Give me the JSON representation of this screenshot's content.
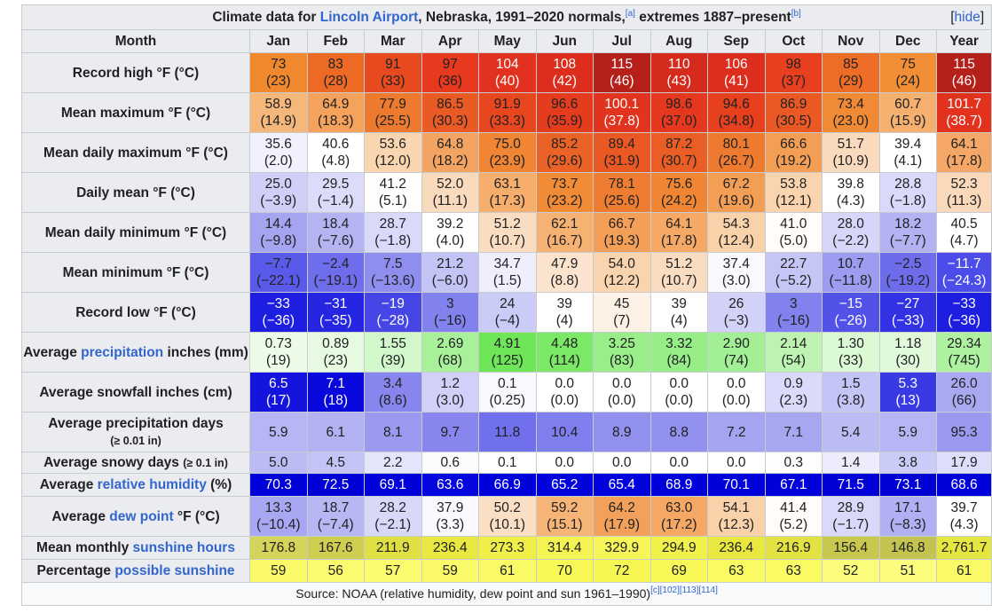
{
  "caption": {
    "prefix": "Climate data for ",
    "link": "Lincoln Airport",
    "middle": ", Nebraska, 1991–2020 normals,",
    "ref_a": "[a]",
    "suffix": " extremes 1887–present",
    "ref_b": "[b]",
    "hide_open": "[",
    "hide_label": "hide",
    "hide_close": "]"
  },
  "header": {
    "month_label": "Month",
    "months": [
      "Jan",
      "Feb",
      "Mar",
      "Apr",
      "May",
      "Jun",
      "Jul",
      "Aug",
      "Sep",
      "Oct",
      "Nov",
      "Dec"
    ],
    "year_label": "Year"
  },
  "rows": [
    {
      "label": "Record high °F (°C)",
      "type": "dual",
      "values": [
        [
          "73",
          "(23)"
        ],
        [
          "83",
          "(28)"
        ],
        [
          "91",
          "(33)"
        ],
        [
          "97",
          "(36)"
        ],
        [
          "104",
          "(40)"
        ],
        [
          "108",
          "(42)"
        ],
        [
          "115",
          "(46)"
        ],
        [
          "110",
          "(43)"
        ],
        [
          "106",
          "(41)"
        ],
        [
          "98",
          "(37)"
        ],
        [
          "85",
          "(29)"
        ],
        [
          "75",
          "(24)"
        ],
        [
          "115",
          "(46)"
        ]
      ],
      "colors": [
        "#f0892e",
        "#ed6a25",
        "#e84a1f",
        "#e8391e",
        "#e2311e",
        "#dc2d1d",
        "#b5201a",
        "#d52b1d",
        "#dd2e1d",
        "#e8401f",
        "#ed6c26",
        "#f28f36",
        "#b5201a"
      ],
      "text": [
        "#202122",
        "#202122",
        "#202122",
        "#202122",
        "#ffffff",
        "#ffffff",
        "#ffffff",
        "#ffffff",
        "#ffffff",
        "#202122",
        "#202122",
        "#202122",
        "#ffffff"
      ]
    },
    {
      "label": "Mean maximum °F (°C)",
      "type": "dual",
      "values": [
        [
          "58.9",
          "(14.9)"
        ],
        [
          "64.9",
          "(18.3)"
        ],
        [
          "77.9",
          "(25.5)"
        ],
        [
          "86.5",
          "(30.3)"
        ],
        [
          "91.9",
          "(33.3)"
        ],
        [
          "96.6",
          "(35.9)"
        ],
        [
          "100.1",
          "(37.8)"
        ],
        [
          "98.6",
          "(37.0)"
        ],
        [
          "94.6",
          "(34.8)"
        ],
        [
          "86.9",
          "(30.5)"
        ],
        [
          "73.4",
          "(23.0)"
        ],
        [
          "60.7",
          "(15.9)"
        ],
        [
          "101.7",
          "(38.7)"
        ]
      ],
      "colors": [
        "#f6b77b",
        "#f4a25c",
        "#ee7a2f",
        "#ea5a24",
        "#e8461f",
        "#e63c1e",
        "#e2331e",
        "#e5381e",
        "#e7401f",
        "#ea5824",
        "#f08a35",
        "#f5b070",
        "#e2321e"
      ],
      "text": [
        "#202122",
        "#202122",
        "#202122",
        "#202122",
        "#202122",
        "#202122",
        "#ffffff",
        "#202122",
        "#202122",
        "#202122",
        "#202122",
        "#202122",
        "#ffffff"
      ]
    },
    {
      "label": "Mean daily maximum °F (°C)",
      "type": "dual",
      "values": [
        [
          "35.6",
          "(2.0)"
        ],
        [
          "40.6",
          "(4.8)"
        ],
        [
          "53.6",
          "(12.0)"
        ],
        [
          "64.8",
          "(18.2)"
        ],
        [
          "75.0",
          "(23.9)"
        ],
        [
          "85.2",
          "(29.6)"
        ],
        [
          "89.4",
          "(31.9)"
        ],
        [
          "87.2",
          "(30.7)"
        ],
        [
          "80.1",
          "(26.7)"
        ],
        [
          "66.6",
          "(19.2)"
        ],
        [
          "51.7",
          "(10.9)"
        ],
        [
          "39.4",
          "(4.1)"
        ],
        [
          "64.1",
          "(17.8)"
        ]
      ],
      "colors": [
        "#f1f1fd",
        "#ffffff",
        "#f9d5b0",
        "#f4a462",
        "#f08633",
        "#eb6227",
        "#ea5824",
        "#ea5e26",
        "#ee7a2f",
        "#f39e55",
        "#fadabd",
        "#ffffff",
        "#f4a766"
      ],
      "text": [
        "#202122",
        "#202122",
        "#202122",
        "#202122",
        "#202122",
        "#202122",
        "#202122",
        "#202122",
        "#202122",
        "#202122",
        "#202122",
        "#202122",
        "#202122"
      ]
    },
    {
      "label": "Daily mean °F (°C)",
      "type": "dual",
      "values": [
        [
          "25.0",
          "(−3.9)"
        ],
        [
          "29.5",
          "(−1.4)"
        ],
        [
          "41.2",
          "(5.1)"
        ],
        [
          "52.0",
          "(11.1)"
        ],
        [
          "63.1",
          "(17.3)"
        ],
        [
          "73.7",
          "(23.2)"
        ],
        [
          "78.1",
          "(25.6)"
        ],
        [
          "75.6",
          "(24.2)"
        ],
        [
          "67.2",
          "(19.6)"
        ],
        [
          "53.8",
          "(12.1)"
        ],
        [
          "39.8",
          "(4.3)"
        ],
        [
          "28.8",
          "(−1.8)"
        ],
        [
          "52.3",
          "(11.3)"
        ]
      ],
      "colors": [
        "#cfcff8",
        "#dcdcfa",
        "#fffefc",
        "#fadabd",
        "#f6ae6c",
        "#f28b36",
        "#ef7d31",
        "#f08633",
        "#f39e55",
        "#f9d4ae",
        "#ffffff",
        "#d9d9fa",
        "#fad9bb"
      ],
      "text": [
        "#202122",
        "#202122",
        "#202122",
        "#202122",
        "#202122",
        "#202122",
        "#202122",
        "#202122",
        "#202122",
        "#202122",
        "#202122",
        "#202122",
        "#202122"
      ]
    },
    {
      "label": "Mean daily minimum °F (°C)",
      "type": "dual",
      "values": [
        [
          "14.4",
          "(−9.8)"
        ],
        [
          "18.4",
          "(−7.6)"
        ],
        [
          "28.7",
          "(−1.8)"
        ],
        [
          "39.2",
          "(4.0)"
        ],
        [
          "51.2",
          "(10.7)"
        ],
        [
          "62.1",
          "(16.7)"
        ],
        [
          "66.7",
          "(19.3)"
        ],
        [
          "64.1",
          "(17.8)"
        ],
        [
          "54.3",
          "(12.4)"
        ],
        [
          "41.0",
          "(5.0)"
        ],
        [
          "28.0",
          "(−2.2)"
        ],
        [
          "18.2",
          "(−7.7)"
        ],
        [
          "40.5",
          "(4.7)"
        ]
      ],
      "colors": [
        "#a4a4f0",
        "#b4b4f3",
        "#d9d9fa",
        "#ffffff",
        "#fadcc0",
        "#f6b272",
        "#f49f58",
        "#f5a964",
        "#f9d2aa",
        "#fffcfa",
        "#d6d6f9",
        "#b3b3f3",
        "#ffffff"
      ],
      "text": [
        "#202122",
        "#202122",
        "#202122",
        "#202122",
        "#202122",
        "#202122",
        "#202122",
        "#202122",
        "#202122",
        "#202122",
        "#202122",
        "#202122",
        "#202122"
      ]
    },
    {
      "label": "Mean minimum °F (°C)",
      "type": "dual",
      "values": [
        [
          "−7.7",
          "(−22.1)"
        ],
        [
          "−2.4",
          "(−19.1)"
        ],
        [
          "7.5",
          "(−13.6)"
        ],
        [
          "21.2",
          "(−6.0)"
        ],
        [
          "34.7",
          "(1.5)"
        ],
        [
          "47.9",
          "(8.8)"
        ],
        [
          "54.0",
          "(12.2)"
        ],
        [
          "51.2",
          "(10.7)"
        ],
        [
          "37.4",
          "(3.0)"
        ],
        [
          "22.7",
          "(−5.2)"
        ],
        [
          "10.7",
          "(−11.8)"
        ],
        [
          "−2.5",
          "(−19.2)"
        ],
        [
          "−11.7",
          "(−24.3)"
        ]
      ],
      "colors": [
        "#5a5aea",
        "#6e6eec",
        "#8e8eef",
        "#c3c3f6",
        "#eeeefd",
        "#fbe3cd",
        "#f9d4ae",
        "#fadcc0",
        "#f8f8fe",
        "#c6c6f6",
        "#9c9cf0",
        "#6d6dec",
        "#4c4ce8"
      ],
      "text": [
        "#202122",
        "#202122",
        "#202122",
        "#202122",
        "#202122",
        "#202122",
        "#202122",
        "#202122",
        "#202122",
        "#202122",
        "#202122",
        "#202122",
        "#ffffff"
      ]
    },
    {
      "label": "Record low °F (°C)",
      "type": "dual",
      "values": [
        [
          "−33",
          "(−36)"
        ],
        [
          "−31",
          "(−35)"
        ],
        [
          "−19",
          "(−28)"
        ],
        [
          "3",
          "(−16)"
        ],
        [
          "24",
          "(−4)"
        ],
        [
          "39",
          "(4)"
        ],
        [
          "45",
          "(7)"
        ],
        [
          "39",
          "(4)"
        ],
        [
          "26",
          "(−3)"
        ],
        [
          "3",
          "(−16)"
        ],
        [
          "−15",
          "(−26)"
        ],
        [
          "−27",
          "(−33)"
        ],
        [
          "−33",
          "(−36)"
        ]
      ],
      "colors": [
        "#1e1ee0",
        "#2525e2",
        "#4646e6",
        "#8282ee",
        "#cbcbf7",
        "#ffffff",
        "#fdf0e4",
        "#ffffff",
        "#d2d2f8",
        "#8282ee",
        "#5252e8",
        "#3232e4",
        "#1e1ee0"
      ],
      "text": [
        "#ffffff",
        "#ffffff",
        "#ffffff",
        "#202122",
        "#202122",
        "#202122",
        "#202122",
        "#202122",
        "#202122",
        "#202122",
        "#ffffff",
        "#ffffff",
        "#ffffff"
      ]
    },
    {
      "label_parts": [
        "Average ",
        "precipitation",
        " inches (mm)"
      ],
      "type": "dual",
      "values": [
        [
          "0.73",
          "(19)"
        ],
        [
          "0.89",
          "(23)"
        ],
        [
          "1.55",
          "(39)"
        ],
        [
          "2.69",
          "(68)"
        ],
        [
          "4.91",
          "(125)"
        ],
        [
          "4.48",
          "(114)"
        ],
        [
          "3.25",
          "(83)"
        ],
        [
          "3.32",
          "(84)"
        ],
        [
          "2.90",
          "(74)"
        ],
        [
          "2.14",
          "(54)"
        ],
        [
          "1.30",
          "(33)"
        ],
        [
          "1.18",
          "(30)"
        ],
        [
          "29.34",
          "(745)"
        ]
      ],
      "colors": [
        "#ebfbe7",
        "#e6fae1",
        "#d1f7ca",
        "#a8f09a",
        "#6ee658",
        "#7ce867",
        "#99ee89",
        "#97ed87",
        "#a3ef95",
        "#bdf3b1",
        "#dcf9d5",
        "#e0f9da",
        "#aef2a1"
      ],
      "text": [
        "#202122",
        "#202122",
        "#202122",
        "#202122",
        "#202122",
        "#202122",
        "#202122",
        "#202122",
        "#202122",
        "#202122",
        "#202122",
        "#202122",
        "#202122"
      ]
    },
    {
      "label": "Average snowfall inches (cm)",
      "type": "dual",
      "values": [
        [
          "6.5",
          "(17)"
        ],
        [
          "7.1",
          "(18)"
        ],
        [
          "3.4",
          "(8.6)"
        ],
        [
          "1.2",
          "(3.0)"
        ],
        [
          "0.1",
          "(0.25)"
        ],
        [
          "0.0",
          "(0.0)"
        ],
        [
          "0.0",
          "(0.0)"
        ],
        [
          "0.0",
          "(0.0)"
        ],
        [
          "0.0",
          "(0.0)"
        ],
        [
          "0.9",
          "(2.3)"
        ],
        [
          "1.5",
          "(3.8)"
        ],
        [
          "5.3",
          "(13)"
        ],
        [
          "26.0",
          "(66)"
        ]
      ],
      "colors": [
        "#1414de",
        "#0808dc",
        "#8686ee",
        "#d0d0f8",
        "#f8f8fe",
        "#ffffff",
        "#ffffff",
        "#ffffff",
        "#ffffff",
        "#dadafa",
        "#c4c4f6",
        "#3a3ae4",
        "#a9a9f2"
      ],
      "text": [
        "#ffffff",
        "#ffffff",
        "#202122",
        "#202122",
        "#202122",
        "#202122",
        "#202122",
        "#202122",
        "#202122",
        "#202122",
        "#202122",
        "#ffffff",
        "#202122"
      ]
    },
    {
      "label": "Average precipitation days",
      "label_small": "(≥ 0.01 in)",
      "type": "single",
      "values": [
        "5.9",
        "6.1",
        "8.1",
        "9.7",
        "11.8",
        "10.4",
        "8.9",
        "8.8",
        "7.2",
        "7.1",
        "5.4",
        "5.9",
        "95.3"
      ],
      "colors": [
        "#b6b6f4",
        "#b2b2f3",
        "#9a9af0",
        "#8686ee",
        "#7070ec",
        "#7e7eed",
        "#9090ef",
        "#9191ef",
        "#a4a4f1",
        "#a6a6f1",
        "#bcbcf4",
        "#b6b6f4",
        "#9a9af0"
      ],
      "text": [
        "#202122",
        "#202122",
        "#202122",
        "#202122",
        "#202122",
        "#202122",
        "#202122",
        "#202122",
        "#202122",
        "#202122",
        "#202122",
        "#202122",
        "#202122"
      ]
    },
    {
      "label": "Average snowy days",
      "label_small": "(≥ 0.1 in)",
      "type": "single",
      "values": [
        "5.0",
        "4.5",
        "2.2",
        "0.6",
        "0.1",
        "0.0",
        "0.0",
        "0.0",
        "0.0",
        "0.3",
        "1.4",
        "3.8",
        "17.9"
      ],
      "colors": [
        "#bcbcf4",
        "#c3c3f6",
        "#e4e4fb",
        "#fbfbfe",
        "#ffffff",
        "#ffffff",
        "#ffffff",
        "#ffffff",
        "#ffffff",
        "#fdfdfe",
        "#ececfc",
        "#cbcbf7",
        "#dedefa"
      ],
      "text": [
        "#202122",
        "#202122",
        "#202122",
        "#202122",
        "#202122",
        "#202122",
        "#202122",
        "#202122",
        "#202122",
        "#202122",
        "#202122",
        "#202122",
        "#202122"
      ]
    },
    {
      "label_parts": [
        "Average ",
        "relative humidity",
        " (%)"
      ],
      "type": "single",
      "values": [
        "70.3",
        "72.5",
        "69.1",
        "63.6",
        "66.9",
        "65.2",
        "65.4",
        "68.9",
        "70.1",
        "67.1",
        "71.5",
        "73.1",
        "68.6"
      ],
      "colors": [
        "#0000d8",
        "#0000d6",
        "#0000da",
        "#0505dd",
        "#0000db",
        "#0202dc",
        "#0202dc",
        "#0000da",
        "#0000d8",
        "#0000db",
        "#0000d7",
        "#0000d5",
        "#0000da"
      ],
      "text": [
        "#ffffff",
        "#ffffff",
        "#ffffff",
        "#ffffff",
        "#ffffff",
        "#ffffff",
        "#ffffff",
        "#ffffff",
        "#ffffff",
        "#ffffff",
        "#ffffff",
        "#ffffff",
        "#ffffff"
      ]
    },
    {
      "label_parts": [
        "Average ",
        "dew point",
        " °F (°C)"
      ],
      "type": "dual",
      "values": [
        [
          "13.3",
          "(−10.4)"
        ],
        [
          "18.7",
          "(−7.4)"
        ],
        [
          "28.2",
          "(−2.1)"
        ],
        [
          "37.9",
          "(3.3)"
        ],
        [
          "50.2",
          "(10.1)"
        ],
        [
          "59.2",
          "(15.1)"
        ],
        [
          "64.2",
          "(17.9)"
        ],
        [
          "63.0",
          "(17.2)"
        ],
        [
          "54.1",
          "(12.3)"
        ],
        [
          "41.4",
          "(5.2)"
        ],
        [
          "28.9",
          "(−1.7)"
        ],
        [
          "17.1",
          "(−8.3)"
        ],
        [
          "39.7",
          "(4.3)"
        ]
      ],
      "colors": [
        "#a8a8f2",
        "#b7b7f4",
        "#d8d8f9",
        "#fafafe",
        "#fbdfc4",
        "#f6b477",
        "#f3a05a",
        "#f5a864",
        "#f9d2aa",
        "#fffcf9",
        "#d9d9fa",
        "#b0b0f3",
        "#ffffff"
      ],
      "text": [
        "#202122",
        "#202122",
        "#202122",
        "#202122",
        "#202122",
        "#202122",
        "#202122",
        "#202122",
        "#202122",
        "#202122",
        "#202122",
        "#202122",
        "#202122"
      ]
    },
    {
      "label_parts": [
        "Mean monthly ",
        "sunshine hours",
        ""
      ],
      "type": "single",
      "values": [
        "176.8",
        "167.6",
        "211.9",
        "236.4",
        "273.3",
        "314.4",
        "329.9",
        "294.9",
        "236.4",
        "216.9",
        "156.4",
        "146.8",
        "2,761.7"
      ],
      "colors": [
        "#d4d45a",
        "#cece52",
        "#e0e044",
        "#e8e840",
        "#efef47",
        "#f4f452",
        "#f6f659",
        "#f1f14c",
        "#e8e840",
        "#e2e243",
        "#c8c84f",
        "#c3c34f",
        "#e6e640"
      ],
      "text": [
        "#202122",
        "#202122",
        "#202122",
        "#202122",
        "#202122",
        "#202122",
        "#202122",
        "#202122",
        "#202122",
        "#202122",
        "#202122",
        "#202122",
        "#202122"
      ]
    },
    {
      "label_parts": [
        "Percentage ",
        "possible sunshine",
        ""
      ],
      "type": "single",
      "values": [
        "59",
        "56",
        "57",
        "59",
        "61",
        "70",
        "72",
        "69",
        "63",
        "63",
        "52",
        "51",
        "61"
      ],
      "colors": [
        "#fbfb6a",
        "#fbfb70",
        "#fbfb6e",
        "#fbfb6a",
        "#fafa66",
        "#f8f856",
        "#f7f753",
        "#f8f858",
        "#fafa62",
        "#fafa62",
        "#fcfc7c",
        "#fcfc7e",
        "#fafa66"
      ],
      "text": [
        "#202122",
        "#202122",
        "#202122",
        "#202122",
        "#202122",
        "#202122",
        "#202122",
        "#202122",
        "#202122",
        "#202122",
        "#202122",
        "#202122",
        "#202122"
      ]
    }
  ],
  "source": {
    "text": "Source: NOAA (relative humidity, dew point and sun 1961–1990)",
    "refs": [
      "[c]",
      "[102]",
      "[113]",
      "[114]"
    ]
  }
}
